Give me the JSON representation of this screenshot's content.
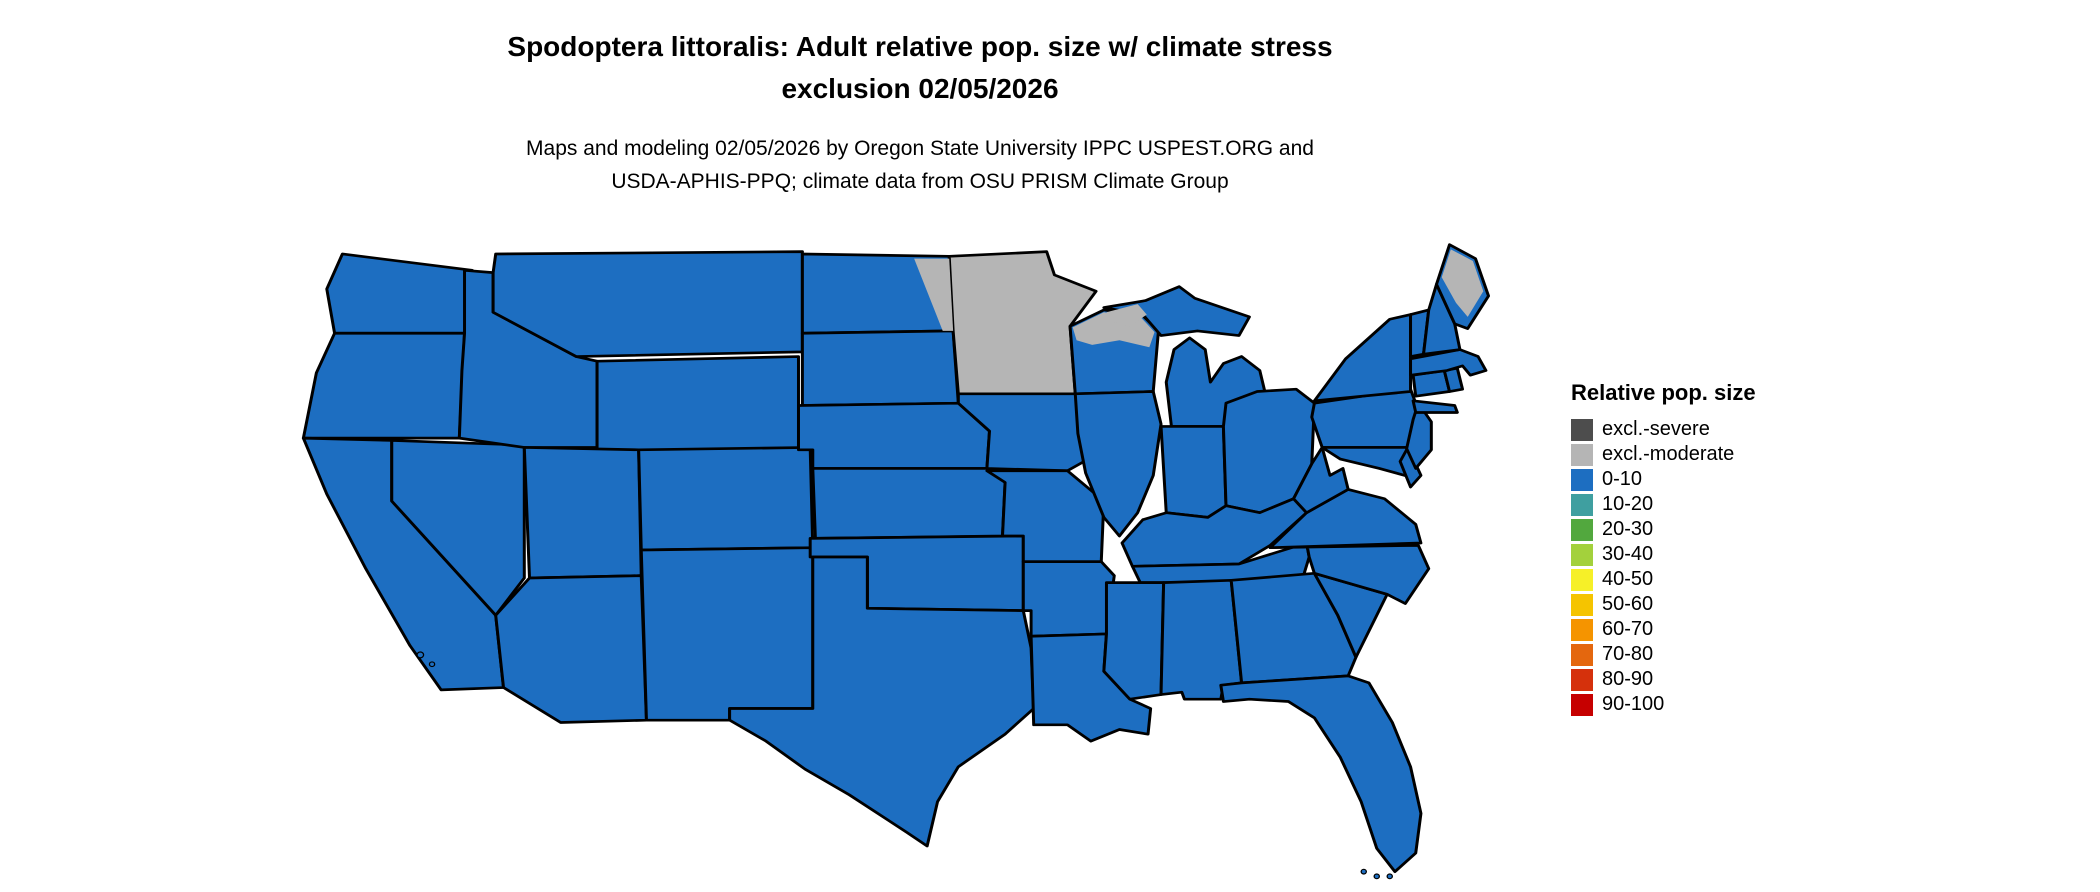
{
  "title": {
    "line1": "Spodoptera littoralis: Adult relative pop. size w/ climate stress",
    "line2": "exclusion 02/05/2026"
  },
  "subtitle": {
    "line1": "Maps and modeling 02/05/2026 by Oregon State University IPPC USPEST.ORG and",
    "line2": "USDA-APHIS-PPQ; climate data from OSU PRISM Climate Group"
  },
  "legend": {
    "title": "Relative pop. size",
    "entries": [
      {
        "label": "excl.-severe",
        "color": "#4d4d4d"
      },
      {
        "label": "excl.-moderate",
        "color": "#b5b5b5"
      },
      {
        "label": "0-10",
        "color": "#1d6ec1"
      },
      {
        "label": "10-20",
        "color": "#3f9fa0"
      },
      {
        "label": "20-30",
        "color": "#52a83e"
      },
      {
        "label": "30-40",
        "color": "#a3d13c"
      },
      {
        "label": "40-50",
        "color": "#f6f028"
      },
      {
        "label": "50-60",
        "color": "#f5c400"
      },
      {
        "label": "60-70",
        "color": "#f59400"
      },
      {
        "label": "70-80",
        "color": "#e4670e"
      },
      {
        "label": "80-90",
        "color": "#d5310c"
      },
      {
        "label": "90-100",
        "color": "#c60000"
      }
    ]
  },
  "map": {
    "description": "Continental United States choropleth",
    "default_category": "0-10",
    "state_overrides": {
      "MN": "excl.-moderate"
    },
    "partial_overlays": [
      {
        "name": "north-dakota-east",
        "category": "excl.-moderate"
      },
      {
        "name": "wisconsin-north",
        "category": "excl.-moderate"
      },
      {
        "name": "michigan-up-west",
        "category": "excl.-moderate"
      },
      {
        "name": "maine-north",
        "category": "excl.-moderate"
      }
    ]
  }
}
